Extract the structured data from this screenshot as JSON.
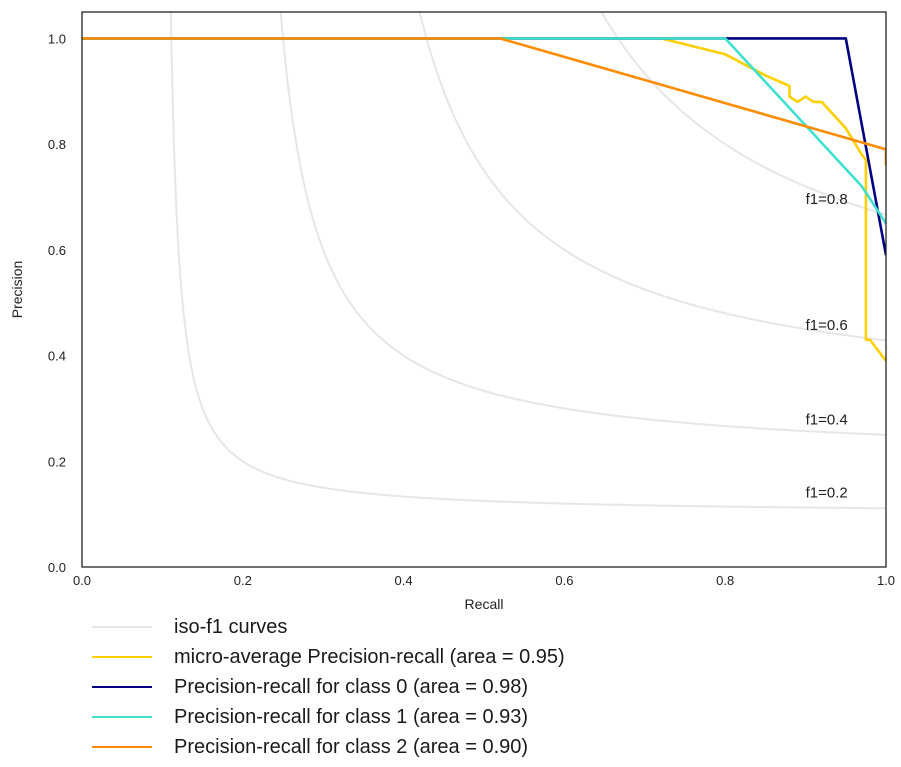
{
  "chart_data": {
    "type": "line",
    "xlabel": "Recall",
    "ylabel": "Precision",
    "xlim": [
      0.0,
      1.0
    ],
    "ylim": [
      0.0,
      1.05
    ],
    "x_ticks": [
      "0.0",
      "0.2",
      "0.4",
      "0.6",
      "0.8",
      "1.0"
    ],
    "y_ticks": [
      "0.0",
      "0.2",
      "0.4",
      "0.6",
      "0.8",
      "1.0"
    ],
    "grid": false,
    "legend_position": "below",
    "iso_f1": {
      "values": [
        0.2,
        0.4,
        0.6,
        0.8
      ],
      "labels": [
        "f1=0.2",
        "f1=0.4",
        "f1=0.6",
        "f1=0.8"
      ],
      "color": "#e6e6e6"
    },
    "series": [
      {
        "name": "micro-average Precision-recall (area = 0.95)",
        "color": "#ffd000",
        "x": [
          0.0,
          0.52,
          0.72,
          0.8,
          0.85,
          0.88,
          0.88,
          0.89,
          0.9,
          0.91,
          0.92,
          0.95,
          0.97,
          0.975,
          0.975,
          0.98,
          0.99,
          1.0
        ],
        "y": [
          1.0,
          1.0,
          1.0,
          0.97,
          0.93,
          0.91,
          0.89,
          0.88,
          0.89,
          0.88,
          0.88,
          0.83,
          0.78,
          0.77,
          0.43,
          0.43,
          0.41,
          0.39
        ]
      },
      {
        "name": "Precision-recall for class 0 (area = 0.98)",
        "color": "#000080",
        "x": [
          0.0,
          0.95,
          1.0
        ],
        "y": [
          1.0,
          1.0,
          0.59
        ]
      },
      {
        "name": "Precision-recall for class 1 (area = 0.93)",
        "color": "#40e0d0",
        "x": [
          0.0,
          0.8,
          0.97,
          1.0
        ],
        "y": [
          1.0,
          1.0,
          0.72,
          0.65
        ]
      },
      {
        "name": "Precision-recall for class 2 (area = 0.90)",
        "color": "#ff8c00",
        "x": [
          0.0,
          0.52,
          1.0,
          1.0
        ],
        "y": [
          1.0,
          1.0,
          0.79,
          0.76
        ]
      }
    ],
    "legend": [
      {
        "label": "iso-f1 curves",
        "color": "#e6e6e6"
      },
      {
        "label": "micro-average Precision-recall (area = 0.95)",
        "color": "#ffd000"
      },
      {
        "label": "Precision-recall for class 0 (area = 0.98)",
        "color": "#000080"
      },
      {
        "label": "Precision-recall for class 1 (area = 0.93)",
        "color": "#40e0d0"
      },
      {
        "label": "Precision-recall for class 2 (area = 0.90)",
        "color": "#ff8c00"
      }
    ]
  }
}
